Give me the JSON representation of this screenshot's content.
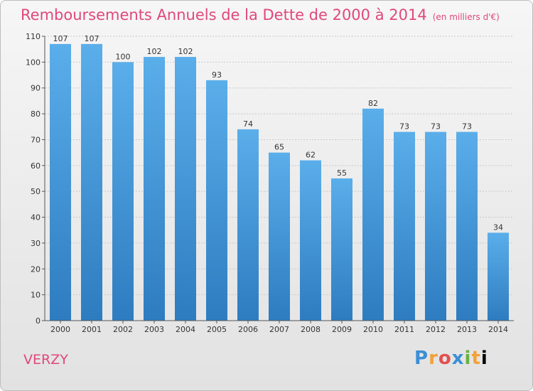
{
  "header": {
    "title": "Remboursements Annuels de la Dette de 2000 à 2014",
    "unit": "(en milliers d'€)"
  },
  "commune": "VERZY",
  "logo": "Proxiti",
  "colors": {
    "title": "#e0487a",
    "bar_top": "#5aaeea",
    "bar_bottom": "#2e7cc0"
  },
  "chart_data": {
    "type": "bar",
    "title": "Remboursements Annuels de la Dette de 2000 à 2014",
    "xlabel": "",
    "ylabel": "",
    "categories": [
      "2000",
      "2001",
      "2002",
      "2003",
      "2004",
      "2005",
      "2006",
      "2007",
      "2008",
      "2009",
      "2010",
      "2011",
      "2012",
      "2013",
      "2014"
    ],
    "values": [
      107,
      107,
      100,
      102,
      102,
      93,
      74,
      65,
      62,
      55,
      82,
      73,
      73,
      73,
      34
    ],
    "ylim": [
      0,
      110
    ],
    "yticks": [
      0,
      10,
      20,
      30,
      40,
      50,
      60,
      70,
      80,
      90,
      100,
      110
    ],
    "grid": true,
    "legend": "none"
  }
}
